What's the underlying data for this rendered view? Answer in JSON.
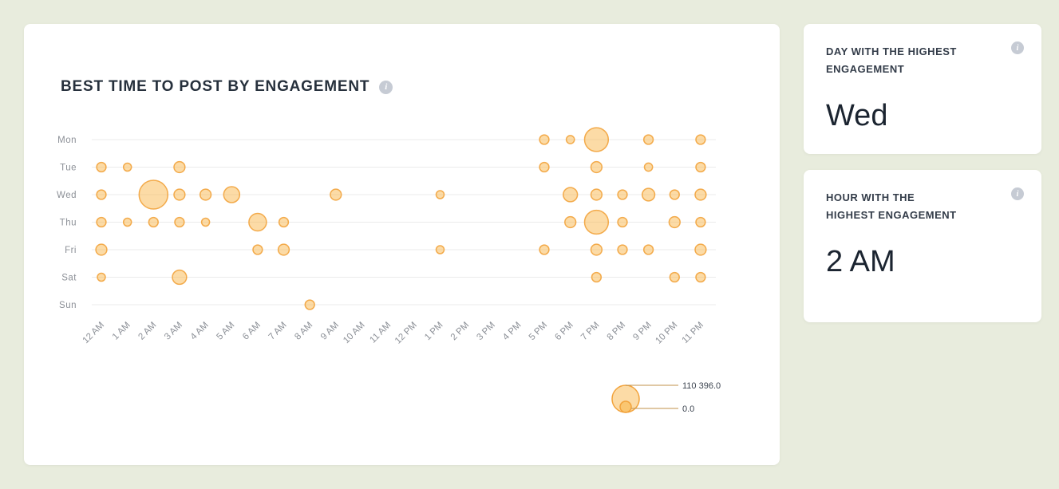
{
  "page": {
    "background": "#e8ecdd"
  },
  "icons": {
    "info": "i"
  },
  "chart_card": {
    "title": "BEST TIME TO POST BY ENGAGEMENT"
  },
  "chart_data": {
    "type": "bubble",
    "title": "BEST TIME TO POST BY ENGAGEMENT",
    "x_labels": [
      "12 AM",
      "1 AM",
      "2 AM",
      "3 AM",
      "4 AM",
      "5 AM",
      "6 AM",
      "7 AM",
      "8 AM",
      "9 AM",
      "10 AM",
      "11 AM",
      "12 PM",
      "1 PM",
      "2 PM",
      "3 PM",
      "4 PM",
      "5 PM",
      "6 PM",
      "7 PM",
      "8 PM",
      "9 PM",
      "10 PM",
      "11 PM"
    ],
    "y_labels": [
      "Mon",
      "Tue",
      "Wed",
      "Thu",
      "Fri",
      "Sat",
      "Sun"
    ],
    "max_value": 110396,
    "legend": {
      "max_label": "110 396.0",
      "min_label": "0.0",
      "position": "bottom-right"
    },
    "grid": true,
    "style": {
      "bubble_fill": "#F9B74E",
      "bubble_stroke": "#F2A33C",
      "grid_color": "#ebebeb",
      "axis_label_color": "#8c9097",
      "legend_line_color": "#c09049",
      "legend_text_color": "#3c4450"
    },
    "points": [
      {
        "day": "Mon",
        "hour": "5 PM",
        "value": 12000
      },
      {
        "day": "Mon",
        "hour": "6 PM",
        "value": 9000
      },
      {
        "day": "Mon",
        "hour": "7 PM",
        "value": 76000
      },
      {
        "day": "Mon",
        "hour": "9 PM",
        "value": 12000
      },
      {
        "day": "Mon",
        "hour": "11 PM",
        "value": 12000
      },
      {
        "day": "Tue",
        "hour": "12 AM",
        "value": 12000
      },
      {
        "day": "Tue",
        "hour": "1 AM",
        "value": 8500
      },
      {
        "day": "Tue",
        "hour": "3 AM",
        "value": 16000
      },
      {
        "day": "Tue",
        "hour": "5 PM",
        "value": 12000
      },
      {
        "day": "Tue",
        "hour": "7 PM",
        "value": 16000
      },
      {
        "day": "Tue",
        "hour": "9 PM",
        "value": 9000
      },
      {
        "day": "Tue",
        "hour": "11 PM",
        "value": 12000
      },
      {
        "day": "Wed",
        "hour": "12 AM",
        "value": 12000
      },
      {
        "day": "Wed",
        "hour": "2 AM",
        "value": 110396
      },
      {
        "day": "Wed",
        "hour": "3 AM",
        "value": 16000
      },
      {
        "day": "Wed",
        "hour": "4 AM",
        "value": 16000
      },
      {
        "day": "Wed",
        "hour": "5 AM",
        "value": 34000
      },
      {
        "day": "Wed",
        "hour": "9 AM",
        "value": 16000
      },
      {
        "day": "Wed",
        "hour": "1 PM",
        "value": 8500
      },
      {
        "day": "Wed",
        "hour": "6 PM",
        "value": 27000
      },
      {
        "day": "Wed",
        "hour": "7 PM",
        "value": 16000
      },
      {
        "day": "Wed",
        "hour": "8 PM",
        "value": 12000
      },
      {
        "day": "Wed",
        "hour": "9 PM",
        "value": 21000
      },
      {
        "day": "Wed",
        "hour": "10 PM",
        "value": 12000
      },
      {
        "day": "Wed",
        "hour": "11 PM",
        "value": 16000
      },
      {
        "day": "Thu",
        "hour": "12 AM",
        "value": 12000
      },
      {
        "day": "Thu",
        "hour": "1 AM",
        "value": 8500
      },
      {
        "day": "Thu",
        "hour": "2 AM",
        "value": 12000
      },
      {
        "day": "Thu",
        "hour": "3 AM",
        "value": 12000
      },
      {
        "day": "Thu",
        "hour": "4 AM",
        "value": 8500
      },
      {
        "day": "Thu",
        "hour": "6 AM",
        "value": 41000
      },
      {
        "day": "Thu",
        "hour": "7 AM",
        "value": 12000
      },
      {
        "day": "Thu",
        "hour": "6 PM",
        "value": 16000
      },
      {
        "day": "Thu",
        "hour": "7 PM",
        "value": 76000
      },
      {
        "day": "Thu",
        "hour": "8 PM",
        "value": 12000
      },
      {
        "day": "Thu",
        "hour": "10 PM",
        "value": 16000
      },
      {
        "day": "Thu",
        "hour": "11 PM",
        "value": 12000
      },
      {
        "day": "Fri",
        "hour": "12 AM",
        "value": 16000
      },
      {
        "day": "Fri",
        "hour": "6 AM",
        "value": 12000
      },
      {
        "day": "Fri",
        "hour": "7 AM",
        "value": 16000
      },
      {
        "day": "Fri",
        "hour": "1 PM",
        "value": 8500
      },
      {
        "day": "Fri",
        "hour": "5 PM",
        "value": 12000
      },
      {
        "day": "Fri",
        "hour": "7 PM",
        "value": 16000
      },
      {
        "day": "Fri",
        "hour": "8 PM",
        "value": 12000
      },
      {
        "day": "Fri",
        "hour": "9 PM",
        "value": 12000
      },
      {
        "day": "Fri",
        "hour": "11 PM",
        "value": 16000
      },
      {
        "day": "Sat",
        "hour": "12 AM",
        "value": 8500
      },
      {
        "day": "Sat",
        "hour": "3 AM",
        "value": 27000
      },
      {
        "day": "Sat",
        "hour": "7 PM",
        "value": 12000
      },
      {
        "day": "Sat",
        "hour": "10 PM",
        "value": 12000
      },
      {
        "day": "Sat",
        "hour": "11 PM",
        "value": 12000
      },
      {
        "day": "Sun",
        "hour": "8 AM",
        "value": 12000
      }
    ]
  },
  "side_cards": [
    {
      "title": "DAY WITH THE HIGHEST ENGAGEMENT",
      "value": "Wed"
    },
    {
      "title": "HOUR WITH THE HIGHEST ENGAGEMENT",
      "value": "2 AM"
    }
  ]
}
